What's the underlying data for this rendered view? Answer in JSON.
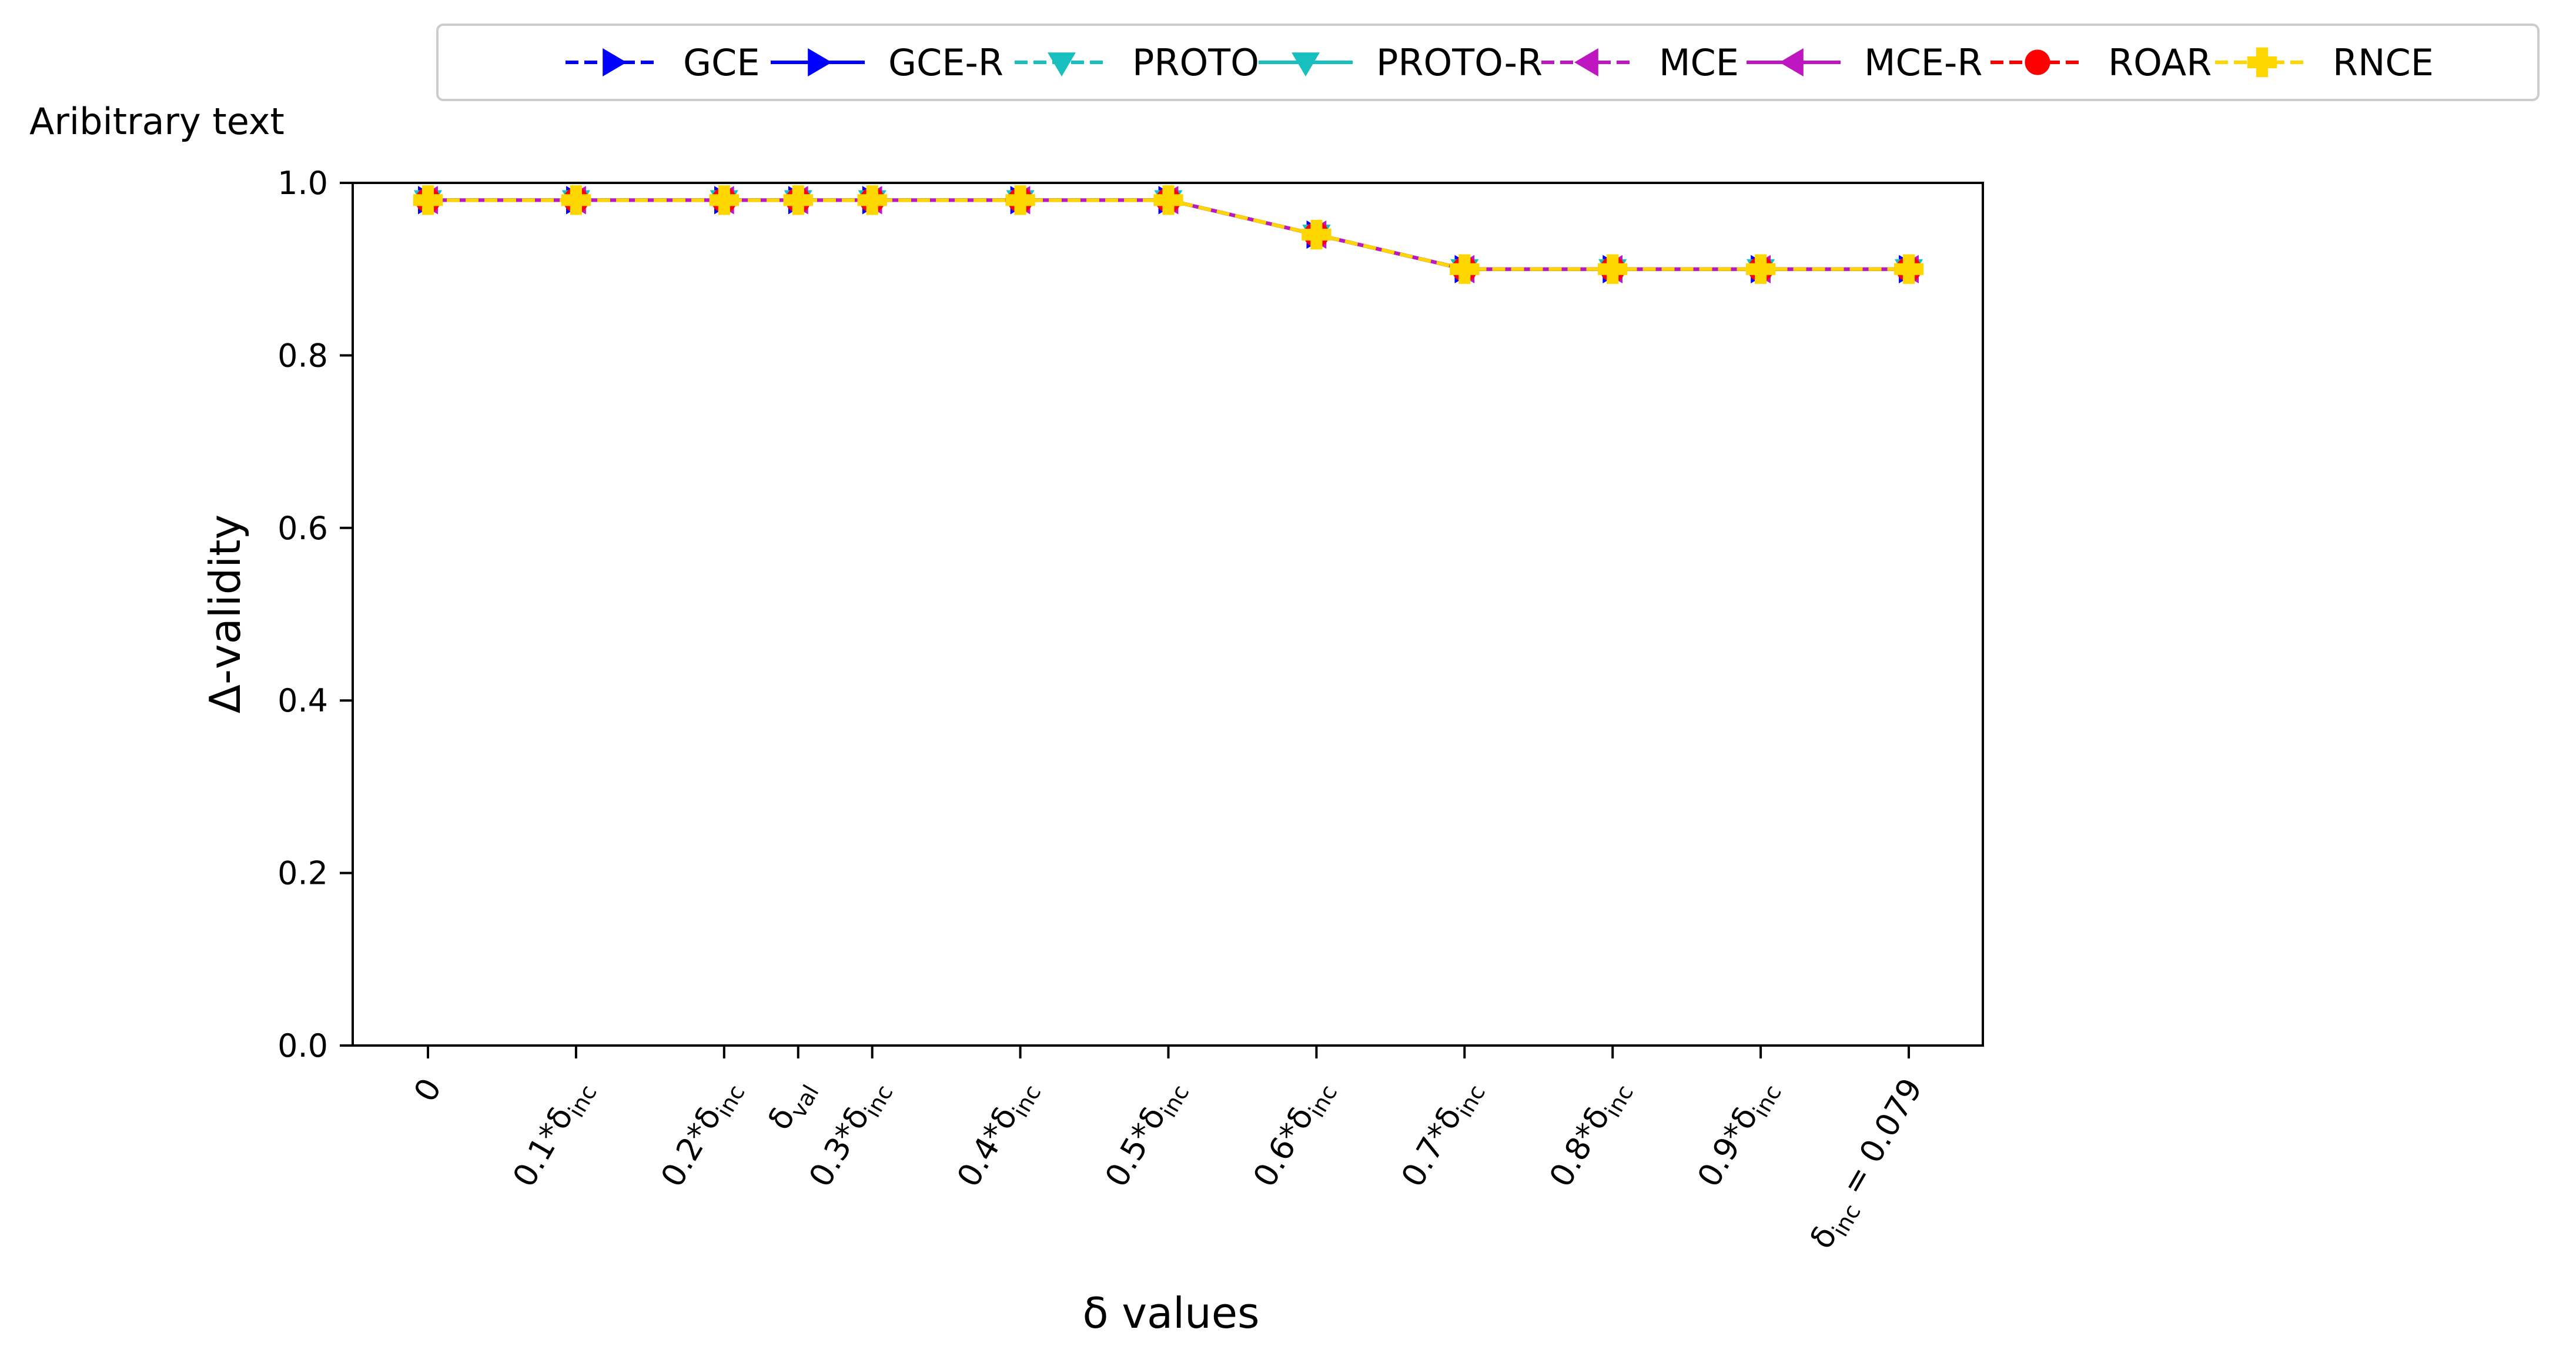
{
  "chart_data": {
    "type": "line",
    "annotation": "Aribitrary text",
    "xlabel": "δ values",
    "ylabel": "Δ-validity",
    "ylim": [
      0,
      1.0
    ],
    "yticks": [
      "0.0",
      "0.2",
      "0.4",
      "0.6",
      "0.8",
      "1.0"
    ],
    "grid": false,
    "legend_position": "top, above plot, single row",
    "x_positions": [
      0,
      0.1,
      0.2,
      0.25,
      0.3,
      0.4,
      0.5,
      0.6,
      0.7,
      0.8,
      0.9,
      1.0
    ],
    "x_ticklabels": [
      {
        "base": "0",
        "sub": "",
        "tail": ""
      },
      {
        "base": "0.1*δ",
        "sub": "inc",
        "tail": ""
      },
      {
        "base": "0.2*δ",
        "sub": "inc",
        "tail": ""
      },
      {
        "base": "δ",
        "sub": "val",
        "tail": ""
      },
      {
        "base": "0.3*δ",
        "sub": "inc",
        "tail": ""
      },
      {
        "base": "0.4*δ",
        "sub": "inc",
        "tail": ""
      },
      {
        "base": "0.5*δ",
        "sub": "inc",
        "tail": ""
      },
      {
        "base": "0.6*δ",
        "sub": "inc",
        "tail": ""
      },
      {
        "base": "0.7*δ",
        "sub": "inc",
        "tail": ""
      },
      {
        "base": "0.8*δ",
        "sub": "inc",
        "tail": ""
      },
      {
        "base": "0.9*δ",
        "sub": "inc",
        "tail": ""
      },
      {
        "base": "δ",
        "sub": "inc",
        "tail": " = 0.079"
      }
    ],
    "series": [
      {
        "name": "GCE",
        "color": "#0000ff",
        "dashed": true,
        "marker": "triangle-right",
        "values": [
          0.98,
          0.98,
          0.98,
          0.98,
          0.98,
          0.98,
          0.98,
          0.94,
          0.9,
          0.9,
          0.9,
          0.9
        ]
      },
      {
        "name": "GCE-R",
        "color": "#0000ff",
        "dashed": false,
        "marker": "triangle-right",
        "values": [
          0.98,
          0.98,
          0.98,
          0.98,
          0.98,
          0.98,
          0.98,
          0.94,
          0.9,
          0.9,
          0.9,
          0.9
        ]
      },
      {
        "name": "PROTO",
        "color": "#17bfbf",
        "dashed": true,
        "marker": "triangle-down",
        "values": [
          0.98,
          0.98,
          0.98,
          0.98,
          0.98,
          0.98,
          0.98,
          0.94,
          0.9,
          0.9,
          0.9,
          0.9
        ]
      },
      {
        "name": "PROTO-R",
        "color": "#17bfbf",
        "dashed": false,
        "marker": "triangle-down",
        "values": [
          0.98,
          0.98,
          0.98,
          0.98,
          0.98,
          0.98,
          0.98,
          0.94,
          0.9,
          0.9,
          0.9,
          0.9
        ]
      },
      {
        "name": "MCE",
        "color": "#bf17bf",
        "dashed": true,
        "marker": "triangle-left",
        "values": [
          0.98,
          0.98,
          0.98,
          0.98,
          0.98,
          0.98,
          0.98,
          0.94,
          0.9,
          0.9,
          0.9,
          0.9
        ]
      },
      {
        "name": "MCE-R",
        "color": "#bf17bf",
        "dashed": false,
        "marker": "triangle-left",
        "values": [
          0.98,
          0.98,
          0.98,
          0.98,
          0.98,
          0.98,
          0.98,
          0.94,
          0.9,
          0.9,
          0.9,
          0.9
        ]
      },
      {
        "name": "ROAR",
        "color": "#ff0000",
        "dashed": true,
        "marker": "circle",
        "values": [
          0.98,
          0.98,
          0.98,
          0.98,
          0.98,
          0.98,
          0.98,
          0.94,
          0.9,
          0.9,
          0.9,
          0.9
        ]
      },
      {
        "name": "RNCE",
        "color": "#ffd700",
        "dashed": true,
        "marker": "plus",
        "values": [
          0.98,
          0.98,
          0.98,
          0.98,
          0.98,
          0.98,
          0.98,
          0.94,
          0.9,
          0.9,
          0.9,
          0.9
        ]
      }
    ]
  }
}
